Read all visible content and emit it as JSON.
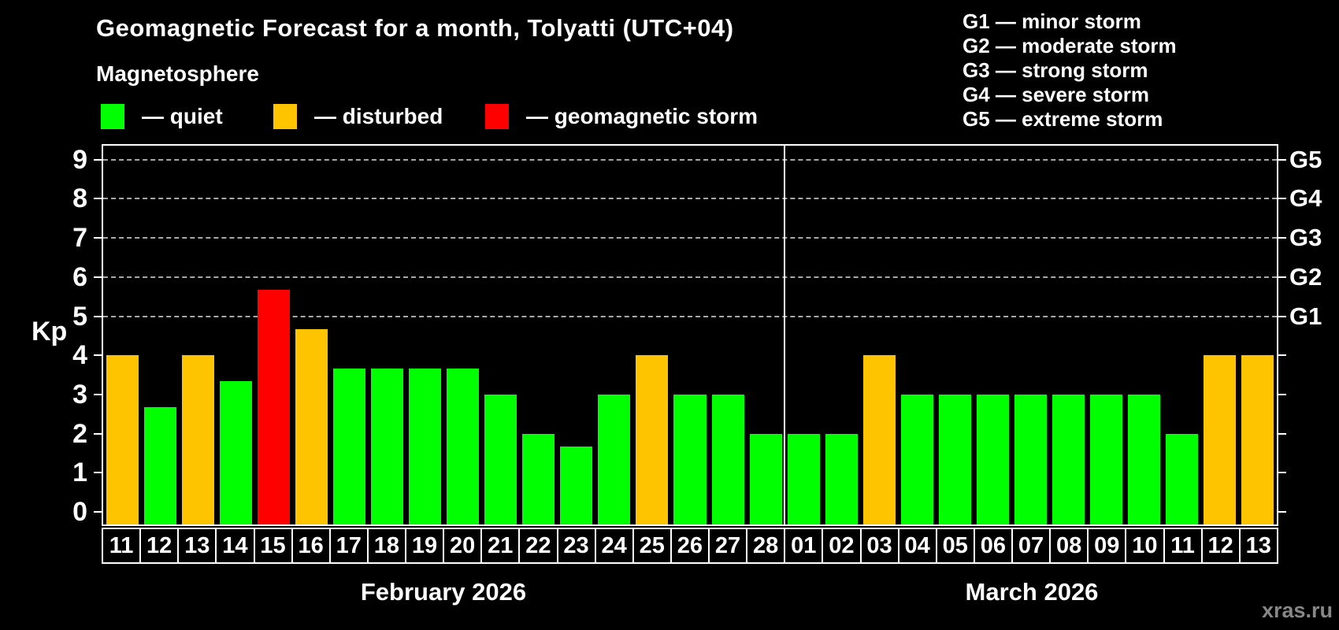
{
  "header": {
    "title": "Geomagnetic Forecast for a month, Tolyatti (UTC+04)",
    "subtitle": "Magnetosphere"
  },
  "legend": {
    "items": [
      {
        "label": "— quiet",
        "color": "#00ff00"
      },
      {
        "label": "— disturbed",
        "color": "#ffc400"
      },
      {
        "label": "— geomagnetic storm",
        "color": "#ff0000"
      }
    ]
  },
  "storm_scale_legend": {
    "items": [
      "G1 — minor storm",
      "G2 — moderate storm",
      "G3 — strong storm",
      "G4 — severe storm",
      "G5 — extreme storm"
    ]
  },
  "watermark": "xras.ru",
  "chart_data": {
    "type": "bar",
    "title": "Geomagnetic Forecast for a month, Tolyatti (UTC+04)",
    "ylabel": "Kp",
    "ylim": [
      0,
      9
    ],
    "yticks": [
      0,
      1,
      2,
      3,
      4,
      5,
      6,
      7,
      8,
      9
    ],
    "gridlines_at": [
      5,
      6,
      7,
      8,
      9
    ],
    "grid_style": "dashed",
    "legend_position": "top",
    "right_axis_labels": [
      {
        "kp": 5,
        "label": "G1"
      },
      {
        "kp": 6,
        "label": "G2"
      },
      {
        "kp": 7,
        "label": "G3"
      },
      {
        "kp": 8,
        "label": "G4"
      },
      {
        "kp": 9,
        "label": "G5"
      }
    ],
    "colors": {
      "quiet": "#00ff00",
      "disturbed": "#ffc400",
      "storm": "#ff0000"
    },
    "months": [
      {
        "label": "February 2026",
        "days": [
          {
            "day": "11",
            "kp": 4.0,
            "status": "disturbed"
          },
          {
            "day": "12",
            "kp": 2.67,
            "status": "quiet"
          },
          {
            "day": "13",
            "kp": 4.0,
            "status": "disturbed"
          },
          {
            "day": "14",
            "kp": 3.33,
            "status": "quiet"
          },
          {
            "day": "15",
            "kp": 5.67,
            "status": "storm"
          },
          {
            "day": "16",
            "kp": 4.67,
            "status": "disturbed"
          },
          {
            "day": "17",
            "kp": 3.67,
            "status": "quiet"
          },
          {
            "day": "18",
            "kp": 3.67,
            "status": "quiet"
          },
          {
            "day": "19",
            "kp": 3.67,
            "status": "quiet"
          },
          {
            "day": "20",
            "kp": 3.67,
            "status": "quiet"
          },
          {
            "day": "21",
            "kp": 3.0,
            "status": "quiet"
          },
          {
            "day": "22",
            "kp": 2.0,
            "status": "quiet"
          },
          {
            "day": "23",
            "kp": 1.67,
            "status": "quiet"
          },
          {
            "day": "24",
            "kp": 3.0,
            "status": "quiet"
          },
          {
            "day": "25",
            "kp": 4.0,
            "status": "disturbed"
          },
          {
            "day": "26",
            "kp": 3.0,
            "status": "quiet"
          },
          {
            "day": "27",
            "kp": 3.0,
            "status": "quiet"
          },
          {
            "day": "28",
            "kp": 2.0,
            "status": "quiet"
          }
        ]
      },
      {
        "label": "March 2026",
        "days": [
          {
            "day": "01",
            "kp": 2.0,
            "status": "quiet"
          },
          {
            "day": "02",
            "kp": 2.0,
            "status": "quiet"
          },
          {
            "day": "03",
            "kp": 4.0,
            "status": "disturbed"
          },
          {
            "day": "04",
            "kp": 3.0,
            "status": "quiet"
          },
          {
            "day": "05",
            "kp": 3.0,
            "status": "quiet"
          },
          {
            "day": "06",
            "kp": 3.0,
            "status": "quiet"
          },
          {
            "day": "07",
            "kp": 3.0,
            "status": "quiet"
          },
          {
            "day": "08",
            "kp": 3.0,
            "status": "quiet"
          },
          {
            "day": "09",
            "kp": 3.0,
            "status": "quiet"
          },
          {
            "day": "10",
            "kp": 3.0,
            "status": "quiet"
          },
          {
            "day": "11",
            "kp": 2.0,
            "status": "quiet"
          },
          {
            "day": "12",
            "kp": 4.0,
            "status": "disturbed"
          },
          {
            "day": "13",
            "kp": 4.0,
            "status": "disturbed"
          }
        ]
      }
    ]
  }
}
